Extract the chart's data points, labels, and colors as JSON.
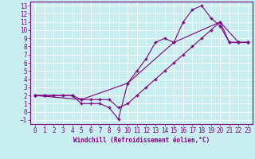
{
  "xlabel": "Windchill (Refroidissement éolien,°C)",
  "ylabel": "",
  "bg_color": "#c8eef0",
  "line_color": "#800080",
  "grid_color": "#ffffff",
  "xlim": [
    -0.5,
    23.5
  ],
  "ylim": [
    -1.5,
    13.5
  ],
  "xticks": [
    0,
    1,
    2,
    3,
    4,
    5,
    6,
    7,
    8,
    9,
    10,
    11,
    12,
    13,
    14,
    15,
    16,
    17,
    18,
    19,
    20,
    21,
    22,
    23
  ],
  "yticks": [
    -1,
    0,
    1,
    2,
    3,
    4,
    5,
    6,
    7,
    8,
    9,
    10,
    11,
    12,
    13
  ],
  "line1_x": [
    0,
    1,
    2,
    3,
    4,
    5,
    6,
    7,
    8,
    9,
    10,
    11,
    12,
    13,
    14,
    15,
    16,
    17,
    18,
    19,
    20,
    21,
    22,
    23
  ],
  "line1_y": [
    2,
    2,
    2,
    2,
    2,
    1,
    1,
    1,
    0.5,
    -0.9,
    3.5,
    5,
    6.5,
    8.5,
    9,
    8.5,
    11,
    12.5,
    13,
    11.5,
    10.5,
    8.5,
    8.5,
    8.5
  ],
  "line2_x": [
    0,
    1,
    2,
    3,
    4,
    5,
    6,
    7,
    8,
    9,
    10,
    11,
    12,
    13,
    14,
    15,
    16,
    17,
    18,
    19,
    20,
    21,
    22,
    23
  ],
  "line2_y": [
    2,
    2,
    2,
    2,
    2,
    1.5,
    1.5,
    1.5,
    1.5,
    0.5,
    1,
    2,
    3,
    4,
    5,
    6,
    7,
    8,
    9,
    10,
    11,
    8.5,
    8.5,
    8.5
  ],
  "line3_x": [
    0,
    5,
    10,
    15,
    20,
    22,
    23
  ],
  "line3_y": [
    2,
    1.5,
    3.5,
    8.5,
    11,
    8.5,
    8.5
  ],
  "xlabel_fontsize": 5.5,
  "tick_fontsize": 5.5
}
